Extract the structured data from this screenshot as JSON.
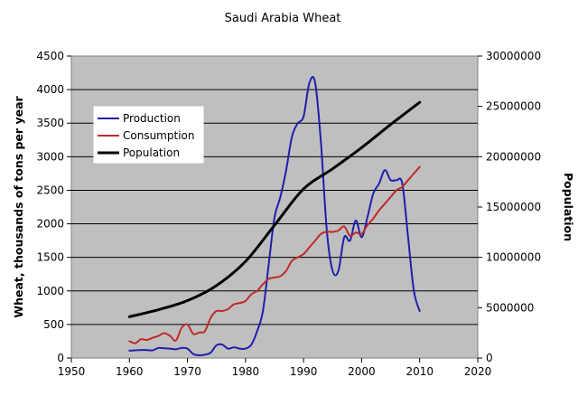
{
  "chart_data": {
    "type": "line",
    "title": "Saudi Arabia Wheat",
    "xlabel": "",
    "ylabel": "Wheat, thousands of tons per year",
    "y2label": "Population",
    "xlim": [
      1950,
      2020
    ],
    "ylim": [
      0,
      4500
    ],
    "y2lim": [
      0,
      30000000
    ],
    "xticks": [
      "1950",
      "1960",
      "1970",
      "1980",
      "1990",
      "2000",
      "2010",
      "2020"
    ],
    "yticks": [
      "0",
      "500",
      "1000",
      "1500",
      "2000",
      "2500",
      "3000",
      "3500",
      "4000",
      "4500"
    ],
    "y2ticks": [
      "0",
      "5000000",
      "10000000",
      "15000000",
      "20000000",
      "25000000",
      "30000000"
    ],
    "grid": true,
    "legend_position": "upper-left",
    "series": [
      {
        "name": "Production",
        "axis": "left",
        "color": "#1f1faf",
        "x": [
          1960,
          1961,
          1962,
          1963,
          1964,
          1965,
          1966,
          1967,
          1968,
          1969,
          1970,
          1971,
          1972,
          1973,
          1974,
          1975,
          1976,
          1977,
          1978,
          1979,
          1980,
          1981,
          1982,
          1983,
          1984,
          1985,
          1986,
          1987,
          1988,
          1989,
          1990,
          1991,
          1992,
          1993,
          1994,
          1995,
          1996,
          1997,
          1998,
          1999,
          2000,
          2001,
          2002,
          2003,
          2004,
          2005,
          2006,
          2007,
          2008,
          2009,
          2010
        ],
        "values": [
          110,
          115,
          120,
          118,
          115,
          150,
          145,
          140,
          130,
          150,
          140,
          60,
          40,
          50,
          80,
          190,
          200,
          140,
          160,
          140,
          140,
          200,
          400,
          700,
          1400,
          2100,
          2400,
          2800,
          3300,
          3500,
          3600,
          4100,
          4100,
          3200,
          1900,
          1300,
          1300,
          1800,
          1750,
          2050,
          1800,
          2100,
          2450,
          2600,
          2800,
          2650,
          2650,
          2600,
          1800,
          1000,
          700
        ]
      },
      {
        "name": "Consumption",
        "axis": "left",
        "color": "#c0292b",
        "x": [
          1960,
          1961,
          1962,
          1963,
          1964,
          1965,
          1966,
          1967,
          1968,
          1969,
          1970,
          1971,
          1972,
          1973,
          1974,
          1975,
          1976,
          1977,
          1978,
          1979,
          1980,
          1981,
          1982,
          1983,
          1984,
          1985,
          1986,
          1987,
          1988,
          1989,
          1990,
          1991,
          1992,
          1993,
          1994,
          1995,
          1996,
          1997,
          1998,
          1999,
          2000,
          2001,
          2002,
          2003,
          2004,
          2005,
          2006,
          2007,
          2008,
          2009,
          2010
        ],
        "values": [
          250,
          220,
          280,
          270,
          300,
          330,
          370,
          330,
          260,
          450,
          500,
          360,
          380,
          400,
          600,
          700,
          700,
          730,
          800,
          820,
          850,
          950,
          1000,
          1100,
          1180,
          1200,
          1220,
          1300,
          1450,
          1500,
          1550,
          1650,
          1750,
          1850,
          1880,
          1880,
          1900,
          1960,
          1820,
          1870,
          1850,
          1980,
          2080,
          2200,
          2300,
          2400,
          2500,
          2550,
          2650,
          2750,
          2850
        ]
      },
      {
        "name": "Population",
        "axis": "right",
        "color": "#000000",
        "x": [
          1960,
          1965,
          1970,
          1975,
          1980,
          1985,
          1990,
          1995,
          2000,
          2005,
          2010
        ],
        "values": [
          4100000,
          4800000,
          5700000,
          7200000,
          9600000,
          13200000,
          16800000,
          18800000,
          20900000,
          23200000,
          25400000
        ]
      }
    ]
  }
}
